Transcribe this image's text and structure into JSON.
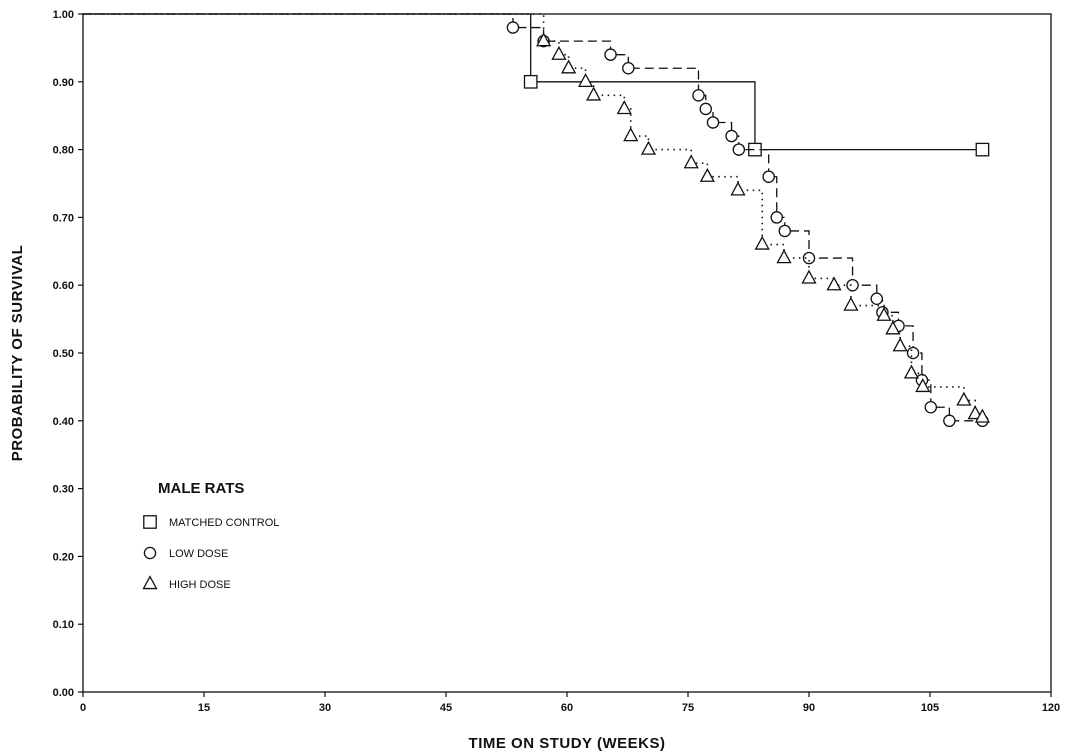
{
  "chart_data": {
    "type": "line",
    "step": true,
    "xlabel": "TIME ON STUDY (WEEKS)",
    "ylabel": "PROBABILITY OF SURVIVAL",
    "xlim": [
      0,
      120
    ],
    "ylim": [
      0,
      1.0
    ],
    "x_ticks": [
      "0",
      "15",
      "30",
      "45",
      "60",
      "75",
      "90",
      "105",
      "120"
    ],
    "y_ticks": [
      "0.00",
      "0.10",
      "0.20",
      "0.30",
      "0.40",
      "0.50",
      "0.60",
      "0.70",
      "0.80",
      "0.90",
      "1.00"
    ],
    "legend": {
      "title": "MALE RATS",
      "position": "lower-left",
      "entries": [
        "MATCHED CONTROL",
        "LOW DOSE",
        "HIGH DOSE"
      ]
    },
    "grid": false,
    "series": [
      {
        "name": "MATCHED CONTROL",
        "marker": "square",
        "line": "solid",
        "x": [
          0,
          55.5,
          83.3,
          111.5
        ],
        "y": [
          1.0,
          0.9,
          0.8,
          0.8
        ]
      },
      {
        "name": "LOW DOSE",
        "marker": "circle",
        "line": "dashed",
        "x": [
          0,
          53.3,
          57.1,
          65.4,
          67.6,
          76.3,
          77.2,
          78.1,
          80.4,
          81.3,
          85.0,
          86.0,
          87.0,
          90.0,
          95.4,
          98.4,
          99.1,
          101.1,
          102.9,
          104.0,
          105.1,
          107.4,
          111.5
        ],
        "y": [
          1.0,
          0.98,
          0.96,
          0.94,
          0.92,
          0.88,
          0.86,
          0.84,
          0.82,
          0.8,
          0.76,
          0.7,
          0.68,
          0.64,
          0.6,
          0.58,
          0.56,
          0.54,
          0.5,
          0.46,
          0.42,
          0.4,
          0.4
        ]
      },
      {
        "name": "HIGH DOSE",
        "marker": "triangle",
        "line": "dotted",
        "x": [
          0,
          57.1,
          59.0,
          60.2,
          62.3,
          63.3,
          67.1,
          67.9,
          70.1,
          75.4,
          77.4,
          81.2,
          84.2,
          86.9,
          90.0,
          93.1,
          95.2,
          99.3,
          100.4,
          101.3,
          102.7,
          104.1,
          109.2,
          110.6,
          111.5
        ],
        "y": [
          1.0,
          0.96,
          0.94,
          0.92,
          0.9,
          0.88,
          0.86,
          0.82,
          0.8,
          0.78,
          0.76,
          0.74,
          0.66,
          0.64,
          0.61,
          0.6,
          0.57,
          0.555,
          0.535,
          0.51,
          0.47,
          0.45,
          0.43,
          0.41,
          0.405
        ]
      }
    ]
  }
}
